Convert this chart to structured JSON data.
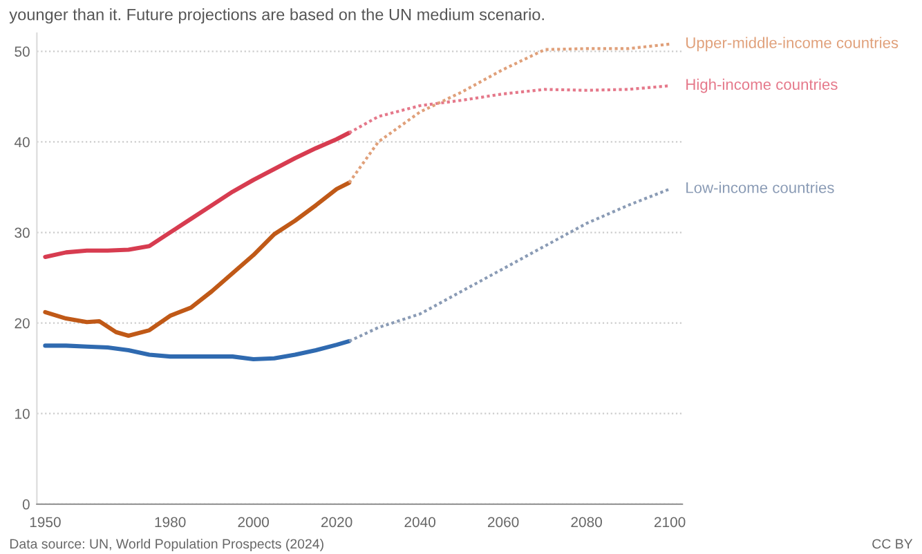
{
  "chart_data": {
    "type": "line",
    "subtitle": "younger than it. Future projections are based on the UN medium scenario.",
    "xlim": [
      1948,
      2103
    ],
    "xticks": [
      1950,
      1980,
      2000,
      2020,
      2040,
      2060,
      2080,
      2100
    ],
    "ylim": [
      0,
      52
    ],
    "yticks": [
      0,
      10,
      20,
      30,
      40,
      50
    ],
    "grid": "y",
    "series": [
      {
        "color": "#d73c50",
        "line_style": "solid",
        "x": [
          1950,
          1955,
          1960,
          1965,
          1970,
          1975,
          1980,
          1985,
          1990,
          1995,
          2000,
          2005,
          2010,
          2015,
          2020,
          2023
        ],
        "values": [
          27.3,
          27.8,
          28.0,
          28.0,
          28.1,
          28.5,
          30.0,
          31.5,
          33.0,
          34.5,
          35.8,
          37.0,
          38.2,
          39.3,
          40.3,
          41.0
        ]
      },
      {
        "name": "High-income countries",
        "color": "#e5788a",
        "line_style": "dotted",
        "x": [
          2023,
          2030,
          2040,
          2050,
          2060,
          2070,
          2080,
          2090,
          2100
        ],
        "values": [
          41.0,
          42.8,
          44.0,
          44.6,
          45.3,
          45.8,
          45.7,
          45.8,
          46.2
        ]
      },
      {
        "color": "#c05917",
        "line_style": "solid",
        "x": [
          1950,
          1955,
          1960,
          1963,
          1967,
          1970,
          1975,
          1980,
          1985,
          1990,
          1995,
          2000,
          2005,
          2010,
          2015,
          2020,
          2023
        ],
        "values": [
          21.2,
          20.5,
          20.1,
          20.2,
          19.0,
          18.6,
          19.2,
          20.8,
          21.7,
          23.5,
          25.5,
          27.5,
          29.8,
          31.3,
          33.0,
          34.8,
          35.5
        ]
      },
      {
        "name": "Upper-middle-income countries",
        "color": "#e0a07a",
        "line_style": "dotted",
        "x": [
          2023,
          2030,
          2040,
          2050,
          2060,
          2070,
          2080,
          2090,
          2100
        ],
        "values": [
          35.5,
          40.0,
          43.3,
          45.5,
          48.0,
          50.2,
          50.3,
          50.3,
          50.8
        ]
      },
      {
        "color": "#2f6ab0",
        "line_style": "solid",
        "x": [
          1950,
          1955,
          1960,
          1965,
          1970,
          1975,
          1980,
          1985,
          1990,
          1995,
          2000,
          2005,
          2010,
          2015,
          2020,
          2023
        ],
        "values": [
          17.5,
          17.5,
          17.4,
          17.3,
          17.0,
          16.5,
          16.3,
          16.3,
          16.3,
          16.3,
          16.0,
          16.1,
          16.5,
          17.0,
          17.6,
          18.0
        ]
      },
      {
        "name": "Low-income countries",
        "color": "#8a9bb5",
        "line_style": "dotted",
        "x": [
          2023,
          2030,
          2040,
          2050,
          2060,
          2070,
          2080,
          2090,
          2100
        ],
        "values": [
          18.0,
          19.5,
          21.0,
          23.5,
          26.0,
          28.5,
          31.0,
          33.0,
          34.8
        ]
      }
    ],
    "annotations": [
      "Data source: UN, World Population Prospects (2024)",
      "CC BY"
    ]
  }
}
